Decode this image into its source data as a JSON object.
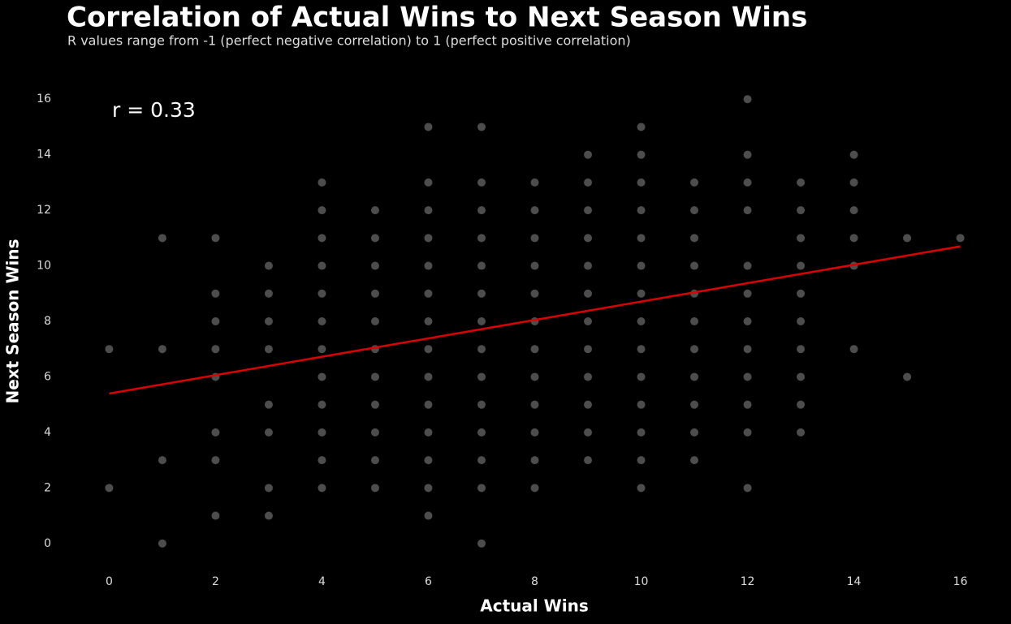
{
  "chart_data": {
    "type": "scatter",
    "title": "Correlation of Actual Wins to Next Season Wins",
    "subtitle": "R values range from -1 (perfect negative correlation) to 1 (perfect positive correlation)",
    "x_label": "Actual Wins",
    "y_label": "Next Season Wins",
    "annotation": "r = 0.33",
    "xlim": [
      -0.8,
      16.8
    ],
    "ylim": [
      -1,
      17
    ],
    "xticks": [
      0,
      2,
      4,
      6,
      8,
      10,
      12,
      14,
      16
    ],
    "yticks": [
      0,
      2,
      4,
      6,
      8,
      10,
      12,
      14,
      16
    ],
    "grid": false,
    "series": [
      {
        "color": "#9a9a9a",
        "x": [
          0,
          0,
          1,
          1,
          1,
          1,
          2,
          2,
          2,
          2,
          2,
          2,
          2,
          2,
          3,
          3,
          3,
          3,
          3,
          3,
          3,
          3,
          4,
          4,
          4,
          4,
          4,
          4,
          4,
          4,
          4,
          4,
          4,
          4,
          5,
          5,
          5,
          5,
          5,
          5,
          5,
          5,
          5,
          5,
          5,
          6,
          6,
          6,
          6,
          6,
          6,
          6,
          6,
          6,
          6,
          6,
          6,
          6,
          6,
          7,
          7,
          7,
          7,
          7,
          7,
          7,
          7,
          7,
          7,
          7,
          7,
          7,
          7,
          8,
          8,
          8,
          8,
          8,
          8,
          8,
          8,
          8,
          8,
          8,
          8,
          9,
          9,
          9,
          9,
          9,
          9,
          9,
          9,
          9,
          9,
          9,
          9,
          10,
          10,
          10,
          10,
          10,
          10,
          10,
          10,
          10,
          10,
          10,
          10,
          10,
          10,
          11,
          11,
          11,
          11,
          11,
          11,
          11,
          11,
          11,
          11,
          11,
          12,
          12,
          12,
          12,
          12,
          12,
          12,
          12,
          12,
          12,
          12,
          12,
          13,
          13,
          13,
          13,
          13,
          13,
          13,
          13,
          13,
          13,
          14,
          14,
          14,
          14,
          14,
          14,
          15,
          15,
          16
        ],
        "y": [
          7,
          2,
          11,
          7,
          3,
          0,
          11,
          9,
          8,
          7,
          6,
          4,
          3,
          1,
          10,
          9,
          8,
          7,
          5,
          4,
          2,
          1,
          13,
          12,
          11,
          10,
          9,
          8,
          7,
          6,
          5,
          4,
          3,
          2,
          12,
          11,
          10,
          9,
          8,
          7,
          6,
          5,
          4,
          3,
          2,
          15,
          13,
          12,
          11,
          10,
          9,
          8,
          7,
          6,
          5,
          4,
          3,
          2,
          1,
          15,
          13,
          12,
          11,
          10,
          9,
          8,
          7,
          6,
          5,
          4,
          3,
          2,
          0,
          13,
          12,
          11,
          10,
          9,
          8,
          7,
          6,
          5,
          4,
          3,
          2,
          14,
          13,
          12,
          11,
          10,
          9,
          8,
          7,
          6,
          5,
          4,
          3,
          15,
          14,
          13,
          12,
          11,
          10,
          9,
          8,
          7,
          6,
          5,
          4,
          3,
          2,
          13,
          12,
          11,
          10,
          9,
          8,
          7,
          6,
          5,
          4,
          3,
          16,
          14,
          13,
          12,
          10,
          9,
          8,
          7,
          6,
          5,
          4,
          2,
          13,
          12,
          11,
          10,
          9,
          8,
          7,
          6,
          5,
          4,
          14,
          13,
          12,
          11,
          10,
          7,
          11,
          6,
          11
        ]
      }
    ],
    "trend_line": {
      "color": "#dd0000",
      "x": [
        0,
        16
      ],
      "y": [
        5.4,
        10.7
      ]
    }
  }
}
